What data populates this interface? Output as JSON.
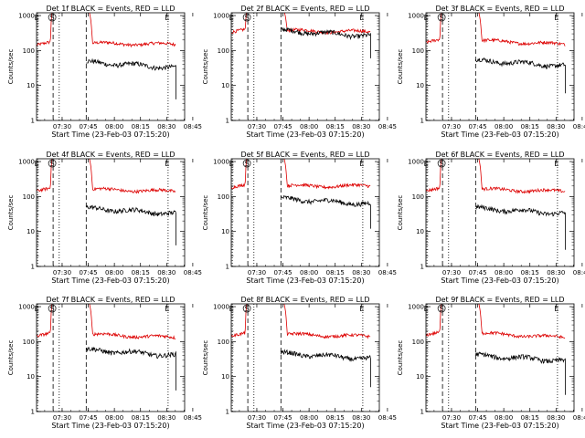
{
  "colors": {
    "events": "#000000",
    "lld": "#dd0000",
    "axes": "#000000",
    "background": "#ffffff"
  },
  "panel_layout": "3x3 grid",
  "shared_axes": {
    "ylabel": "Counts/sec",
    "xlabel": "Start Time (23-Feb-03 07:15:20)",
    "y_scale": "log",
    "ylim": [
      1,
      1200
    ],
    "y_ticks": [
      "1",
      "10",
      "100",
      "1000"
    ],
    "xlim_minutes": [
      0,
      85
    ],
    "x_ticks": [
      {
        "label": "07:30",
        "t": 14.67
      },
      {
        "label": "07:45",
        "t": 29.67
      },
      {
        "label": "08:00",
        "t": 44.67
      },
      {
        "label": "08:15",
        "t": 59.67
      },
      {
        "label": "08:30",
        "t": 74.67
      },
      {
        "label": "08:45",
        "t": 89.67
      }
    ],
    "markers": [
      {
        "label": "E",
        "t": 0.6,
        "style": "dotted"
      },
      {
        "label": "S",
        "t": 9.5,
        "style": "dashed"
      },
      {
        "label": "",
        "t": 13.0,
        "style": "dotted"
      },
      {
        "label": "",
        "t": 28.5,
        "style": "dashed"
      },
      {
        "label": "E",
        "t": 75.5,
        "style": "dotted"
      }
    ]
  },
  "chart_data": [
    {
      "type": "line",
      "title": "Det 1f BLACK = Events, RED = LLD",
      "series": [
        {
          "name": "Events",
          "level": 40,
          "start": 28.5,
          "end": 80,
          "drop": 4
        },
        {
          "name": "LLD",
          "level": 160,
          "spike_peak": 1200,
          "end_level": 150
        }
      ]
    },
    {
      "type": "line",
      "title": "Det 2f BLACK = Events, RED = LLD",
      "series": [
        {
          "name": "Events",
          "level": 320,
          "start": 28.5,
          "end": 80,
          "drop": 60
        },
        {
          "name": "LLD",
          "level": 370,
          "spike_peak": 1200,
          "end_level": 340
        }
      ]
    },
    {
      "type": "line",
      "title": "Det 3f BLACK = Events, RED = LLD",
      "series": [
        {
          "name": "Events",
          "level": 45,
          "start": 28.5,
          "end": 80,
          "drop": 6
        },
        {
          "name": "LLD",
          "level": 190,
          "spike_peak": 1200,
          "end_level": 150
        }
      ]
    },
    {
      "type": "line",
      "title": "Det 4f BLACK = Events, RED = LLD",
      "series": [
        {
          "name": "Events",
          "level": 40,
          "start": 28.5,
          "end": 80,
          "drop": 4
        },
        {
          "name": "LLD",
          "level": 160,
          "spike_peak": 1200,
          "end_level": 140
        }
      ]
    },
    {
      "type": "line",
      "title": "Det 5f BLACK = Events, RED = LLD",
      "series": [
        {
          "name": "Events",
          "level": 75,
          "start": 28.5,
          "end": 80,
          "drop": 12
        },
        {
          "name": "LLD",
          "level": 200,
          "spike_peak": 1200,
          "end_level": 200
        }
      ]
    },
    {
      "type": "line",
      "title": "Det 6f BLACK = Events, RED = LLD",
      "series": [
        {
          "name": "Events",
          "level": 40,
          "start": 28.5,
          "end": 80,
          "drop": 3
        },
        {
          "name": "LLD",
          "level": 160,
          "spike_peak": 1200,
          "end_level": 140
        }
      ]
    },
    {
      "type": "line",
      "title": "Det 7f BLACK = Events, RED = LLD",
      "series": [
        {
          "name": "Events",
          "level": 50,
          "start": 28.5,
          "end": 80,
          "drop": 4
        },
        {
          "name": "LLD",
          "level": 160,
          "spike_peak": 1200,
          "end_level": 130
        }
      ]
    },
    {
      "type": "line",
      "title": "Det 8f BLACK = Events, RED = LLD",
      "series": [
        {
          "name": "Events",
          "level": 40,
          "start": 28.5,
          "end": 80,
          "drop": 5
        },
        {
          "name": "LLD",
          "level": 160,
          "spike_peak": 1200,
          "end_level": 140
        }
      ]
    },
    {
      "type": "line",
      "title": "Det 9f BLACK = Events, RED = LLD",
      "series": [
        {
          "name": "Events",
          "level": 35,
          "start": 28.5,
          "end": 80,
          "drop": 3
        },
        {
          "name": "LLD",
          "level": 170,
          "spike_peak": 1200,
          "end_level": 130
        }
      ]
    }
  ]
}
